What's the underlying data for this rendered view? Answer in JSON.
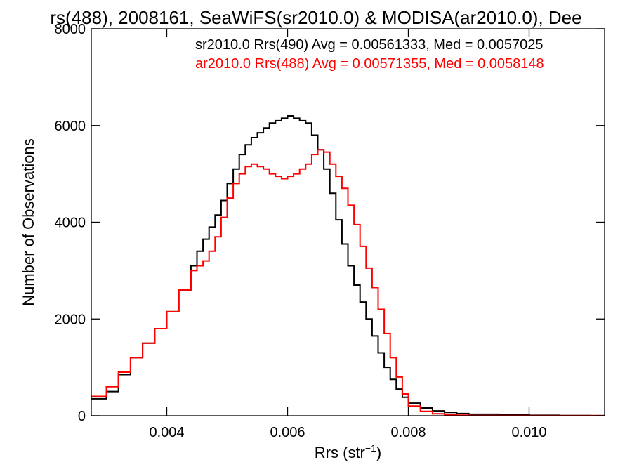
{
  "chart_data": {
    "type": "line",
    "step": true,
    "title": "rs(488), 2008161, SeaWiFS(sr2010.0) & MODISA(ar2010.0), Dee",
    "xlabel": "Rrs (str",
    "xlabel_superscript": "−1",
    "xlabel_suffix": ")",
    "ylabel": "Number of Observations",
    "xlim": [
      0.00275,
      0.01125
    ],
    "ylim": [
      0,
      8000
    ],
    "xticks": [
      0.004,
      0.006,
      0.008,
      0.01
    ],
    "xtick_labels": [
      "0.004",
      "0.006",
      "0.008",
      "0.010"
    ],
    "yticks": [
      0,
      2000,
      4000,
      6000,
      8000
    ],
    "ytick_labels": [
      "0",
      "2000",
      "4000",
      "6000",
      "8000"
    ],
    "grid": false,
    "legend_position": "top-right",
    "series": [
      {
        "name": "sr2010.0 Rrs(490) Avg = 0.00561333, Med = 0.0057025",
        "color": "#000000",
        "x": [
          0.00275,
          0.003,
          0.0032,
          0.0034,
          0.0036,
          0.0038,
          0.004,
          0.0042,
          0.0044,
          0.0045,
          0.0046,
          0.0047,
          0.0048,
          0.0049,
          0.005,
          0.0051,
          0.0052,
          0.0053,
          0.0054,
          0.0055,
          0.0056,
          0.0057,
          0.0058,
          0.0059,
          0.006,
          0.0061,
          0.0062,
          0.0063,
          0.0064,
          0.0065,
          0.0066,
          0.0067,
          0.0068,
          0.0069,
          0.007,
          0.0071,
          0.0072,
          0.0073,
          0.0074,
          0.0075,
          0.0076,
          0.0077,
          0.0078,
          0.0079,
          0.008,
          0.0082,
          0.0084,
          0.0086,
          0.0088,
          0.009,
          0.0095,
          0.01,
          0.0105,
          0.011,
          0.01125
        ],
        "y": [
          350,
          500,
          850,
          1200,
          1500,
          1800,
          2150,
          2600,
          3100,
          3400,
          3650,
          3900,
          4150,
          4450,
          4800,
          5100,
          5400,
          5600,
          5750,
          5850,
          5950,
          6050,
          6100,
          6150,
          6200,
          6150,
          6100,
          6050,
          5800,
          5500,
          5100,
          4600,
          4050,
          3550,
          3100,
          2700,
          2350,
          2000,
          1650,
          1300,
          1000,
          750,
          550,
          380,
          260,
          160,
          100,
          70,
          45,
          30,
          15,
          8,
          4,
          2,
          1
        ]
      },
      {
        "name": "ar2010.0 Rrs(488) Avg = 0.00571355, Med = 0.0058148",
        "color": "#ff0000",
        "x": [
          0.00275,
          0.003,
          0.0032,
          0.0034,
          0.0036,
          0.0038,
          0.004,
          0.0042,
          0.0044,
          0.0045,
          0.0046,
          0.0047,
          0.0048,
          0.0049,
          0.005,
          0.0051,
          0.0052,
          0.0053,
          0.0054,
          0.0055,
          0.0056,
          0.0057,
          0.0058,
          0.0059,
          0.006,
          0.0061,
          0.0062,
          0.0063,
          0.0064,
          0.0065,
          0.0066,
          0.0067,
          0.0068,
          0.0069,
          0.007,
          0.0071,
          0.0072,
          0.0073,
          0.0074,
          0.0075,
          0.0076,
          0.0077,
          0.0078,
          0.0079,
          0.008,
          0.0082,
          0.0084,
          0.0086,
          0.0088,
          0.009,
          0.0095,
          0.01,
          0.0105,
          0.011,
          0.01125
        ],
        "y": [
          400,
          600,
          900,
          1200,
          1500,
          1800,
          2150,
          2600,
          3000,
          3100,
          3200,
          3400,
          3700,
          4100,
          4500,
          4800,
          5000,
          5150,
          5200,
          5150,
          5100,
          5000,
          4950,
          4900,
          4950,
          5000,
          5100,
          5200,
          5400,
          5500,
          5450,
          5200,
          4950,
          4700,
          4350,
          3950,
          3500,
          3050,
          2650,
          2200,
          1700,
          1200,
          800,
          450,
          200,
          90,
          40,
          20,
          10,
          5,
          3,
          2,
          1,
          1,
          1
        ]
      }
    ]
  }
}
